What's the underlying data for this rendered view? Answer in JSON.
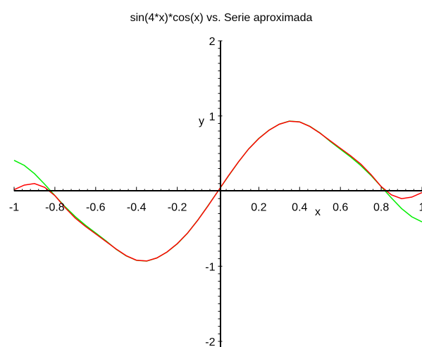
{
  "chart_data": {
    "type": "line",
    "title": "sin(4*x)*cos(x) vs. Serie aproximada",
    "xlabel": "x",
    "ylabel": "y",
    "xlim": [
      -1,
      1
    ],
    "ylim": [
      -2,
      2
    ],
    "grid": false,
    "legend": "none",
    "x_ticks": [
      {
        "value": -1,
        "label": "-1"
      },
      {
        "value": -0.8,
        "label": "-0.8"
      },
      {
        "value": -0.6,
        "label": "-0.6"
      },
      {
        "value": -0.4,
        "label": "-0.4"
      },
      {
        "value": -0.2,
        "label": "-0.2"
      },
      {
        "value": 0.2,
        "label": "0.2"
      },
      {
        "value": 0.4,
        "label": "0.4"
      },
      {
        "value": 0.6,
        "label": "0.6"
      },
      {
        "value": 0.8,
        "label": "0.8"
      },
      {
        "value": 1,
        "label": "1"
      }
    ],
    "y_ticks": [
      {
        "value": 2,
        "label": "2"
      },
      {
        "value": 1,
        "label": "1"
      },
      {
        "value": -1,
        "label": "-1"
      },
      {
        "value": -2,
        "label": "-2"
      }
    ],
    "x": [
      -1.0,
      -0.95,
      -0.9,
      -0.85,
      -0.8,
      -0.75,
      -0.7,
      -0.65,
      -0.6,
      -0.55,
      -0.5,
      -0.45,
      -0.4,
      -0.35,
      -0.3,
      -0.25,
      -0.2,
      -0.15,
      -0.1,
      -0.05,
      0.0,
      0.05,
      0.1,
      0.15,
      0.2,
      0.25,
      0.3,
      0.35,
      0.4,
      0.45,
      0.5,
      0.55,
      0.6,
      0.65,
      0.7,
      0.75,
      0.8,
      0.85,
      0.9,
      0.95,
      1.0
    ],
    "series": [
      {
        "color": "#00ee00",
        "values": [
          0.409,
          0.342,
          0.232,
          0.092,
          -0.06,
          -0.208,
          -0.34,
          -0.454,
          -0.557,
          -0.661,
          -0.774,
          -0.863,
          -0.922,
          -0.932,
          -0.89,
          -0.811,
          -0.703,
          -0.561,
          -0.388,
          -0.197,
          0.0,
          0.197,
          0.388,
          0.561,
          0.703,
          0.811,
          0.89,
          0.932,
          0.922,
          0.863,
          0.774,
          0.661,
          0.557,
          0.454,
          0.34,
          0.208,
          0.06,
          -0.092,
          -0.232,
          -0.342,
          -0.409
        ]
      },
      {
        "color": "#ff0000",
        "values": [
          0.02,
          0.08,
          0.1,
          0.05,
          -0.06,
          -0.22,
          -0.36,
          -0.47,
          -0.57,
          -0.67,
          -0.77,
          -0.86,
          -0.92,
          -0.93,
          -0.89,
          -0.81,
          -0.7,
          -0.56,
          -0.39,
          -0.2,
          0.0,
          0.2,
          0.39,
          0.56,
          0.7,
          0.81,
          0.89,
          0.93,
          0.92,
          0.86,
          0.77,
          0.67,
          0.57,
          0.47,
          0.36,
          0.22,
          0.06,
          -0.05,
          -0.1,
          -0.08,
          -0.02
        ]
      }
    ]
  }
}
